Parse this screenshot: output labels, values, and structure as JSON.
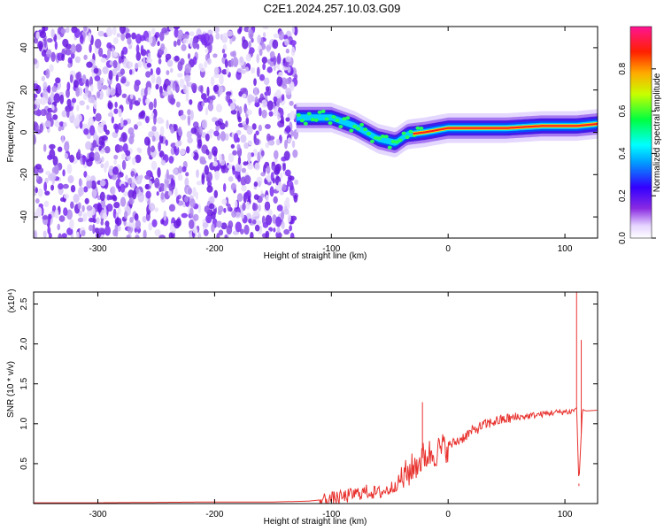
{
  "title": "C2E1.2024.257.10.03.G09",
  "chart_data": [
    {
      "type": "heatmap",
      "xlabel": "Height of straight line (km)",
      "ylabel": "Frequency (Hz)",
      "xlim": [
        -355,
        128
      ],
      "ylim": [
        -50,
        50
      ],
      "x_ticks": [
        -300,
        -200,
        -100,
        0,
        100
      ],
      "y_ticks": [
        -40,
        -20,
        0,
        20,
        40
      ],
      "colorbar": {
        "label": "Normalized spectral amplitude",
        "range": [
          0,
          1
        ],
        "ticks": [
          "0.0",
          "0.2",
          "0.4",
          "0.6",
          "0.8"
        ],
        "colormap": [
          "#ffffff",
          "#e8d9ff",
          "#8a2be2",
          "#5a00e0",
          "#0000ff",
          "#00ffff",
          "#00ff00",
          "#ffff00",
          "#ff0000",
          "#ff1493"
        ]
      },
      "regions": [
        {
          "x_range": [
            -355,
            -130
          ],
          "description_values": "broadband noise, amplitude 0.0-0.3 across -50..50 Hz"
        },
        {
          "x_range": [
            -130,
            128
          ],
          "centerline_points": [
            [
              -130,
              7
            ],
            [
              -100,
              7
            ],
            [
              -80,
              3
            ],
            [
              -60,
              -3
            ],
            [
              -45,
              -5
            ],
            [
              -35,
              -1
            ],
            [
              -20,
              0
            ],
            [
              0,
              2
            ],
            [
              20,
              2
            ],
            [
              50,
              2
            ],
            [
              80,
              3
            ],
            [
              100,
              3
            ],
            [
              110,
              3
            ],
            [
              128,
              4
            ]
          ],
          "peak_amplitude": 0.95
        }
      ]
    },
    {
      "type": "line",
      "xlabel": "Height of straight line (km)",
      "ylabel": "SNR (10 * v/v)",
      "multiplier": "(x10⁴)",
      "xlim": [
        -355,
        128
      ],
      "ylim": [
        0,
        2.65
      ],
      "x_ticks": [
        -300,
        -200,
        -100,
        0,
        100
      ],
      "y_ticks": [
        "0.5",
        "1.0",
        "1.5",
        "2.0",
        "2.5"
      ],
      "color": "#e8322e",
      "x": [
        -355,
        -300,
        -200,
        -150,
        -120,
        -100,
        -90,
        -80,
        -70,
        -60,
        -50,
        -40,
        -30,
        -20,
        -10,
        0,
        10,
        20,
        30,
        40,
        50,
        60,
        70,
        80,
        90,
        100,
        105,
        110,
        112,
        115,
        118,
        128
      ],
      "y": [
        0.01,
        0.01,
        0.02,
        0.02,
        0.03,
        0.06,
        0.08,
        0.12,
        0.15,
        0.13,
        0.18,
        0.3,
        0.45,
        0.6,
        0.65,
        0.72,
        0.8,
        0.9,
        0.98,
        1.03,
        1.06,
        1.08,
        1.1,
        1.12,
        1.14,
        1.15,
        1.15,
        1.2,
        0.25,
        1.18,
        1.16,
        1.17
      ]
    }
  ]
}
